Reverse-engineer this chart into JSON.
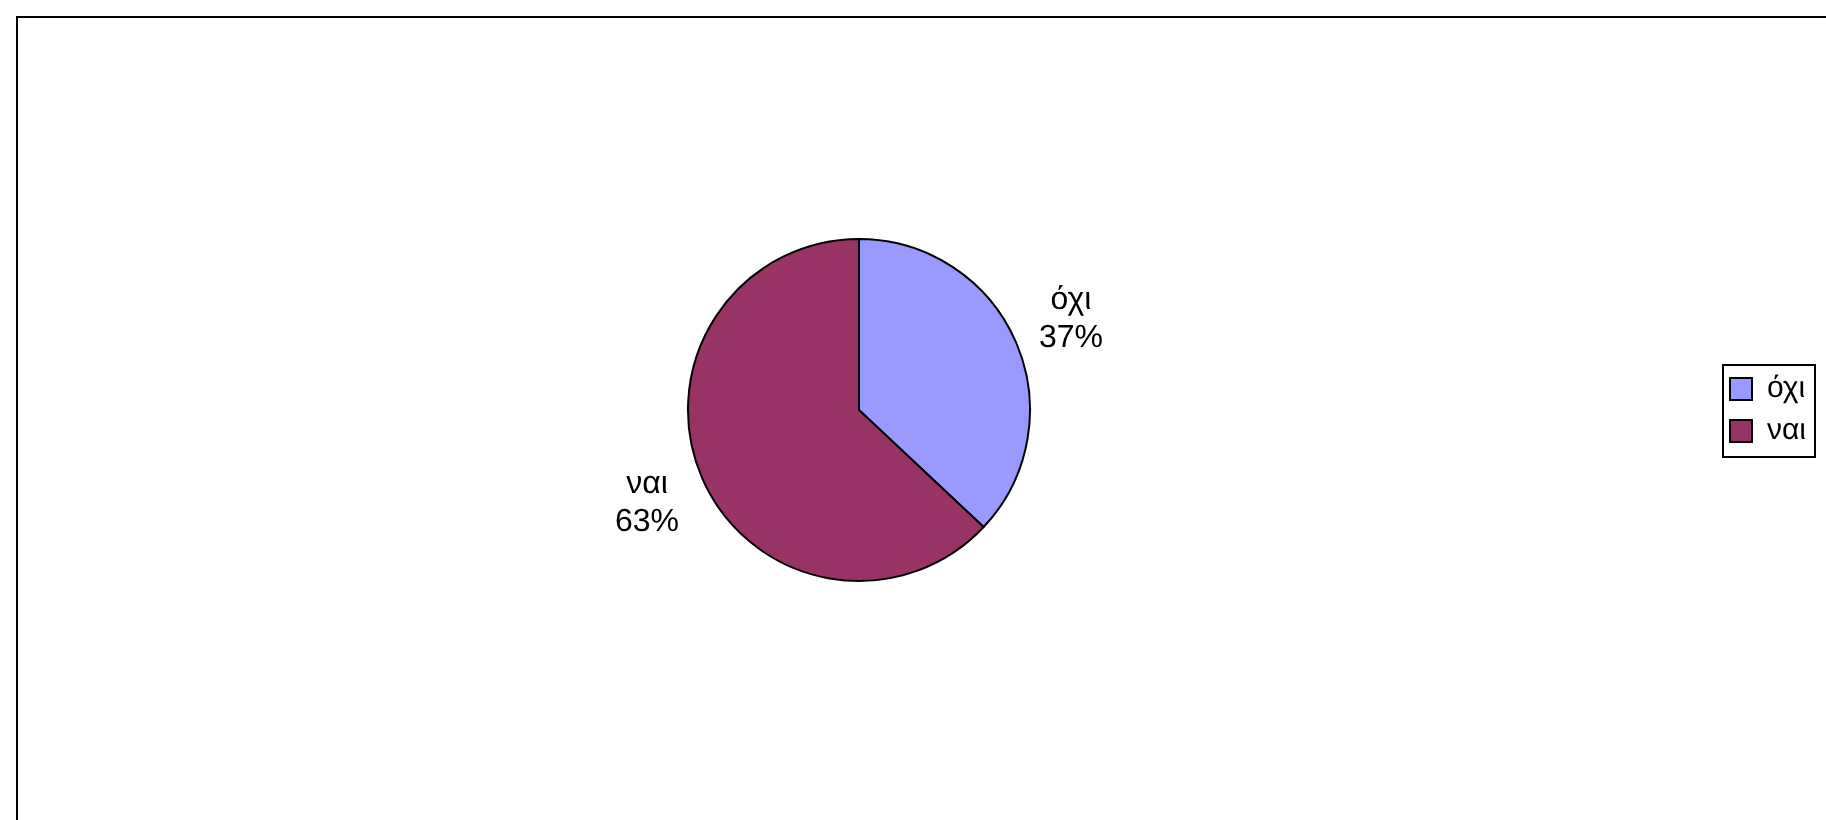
{
  "chart_data": {
    "type": "pie",
    "categories": [
      "όχι",
      "ναι"
    ],
    "values": [
      37,
      63
    ],
    "colors": [
      "#9999ff",
      "#993366"
    ],
    "value_labels": [
      "37%",
      "63%"
    ],
    "legend": "right"
  }
}
